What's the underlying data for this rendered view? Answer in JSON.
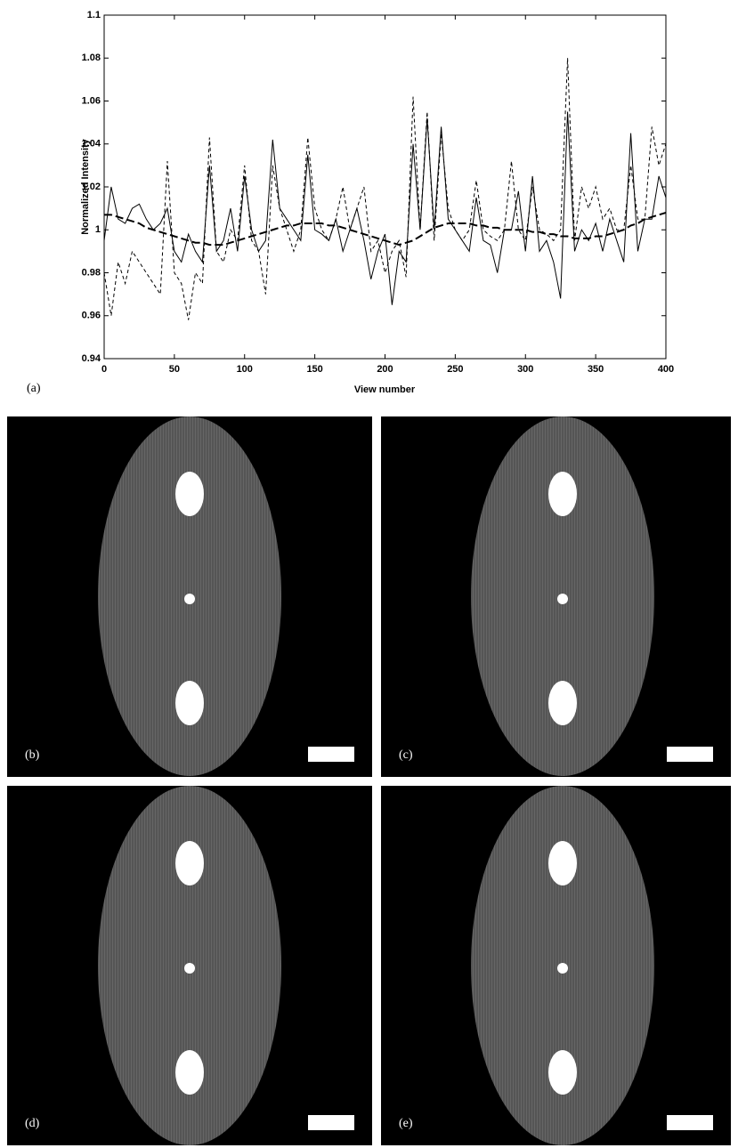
{
  "chart_data": {
    "type": "line",
    "xlabel": "View number",
    "ylabel": "Normalized Intensity",
    "xlim": [
      0,
      400
    ],
    "xticks": [
      0,
      50,
      100,
      150,
      200,
      250,
      300,
      350,
      400
    ],
    "ylim": [
      0.94,
      1.1
    ],
    "yticks": [
      0.94,
      0.96,
      0.98,
      1,
      1.02,
      1.04,
      1.06,
      1.08,
      1.1
    ],
    "x": [
      0,
      5,
      10,
      15,
      20,
      25,
      30,
      35,
      40,
      45,
      50,
      55,
      60,
      65,
      70,
      75,
      80,
      85,
      90,
      95,
      100,
      105,
      110,
      115,
      120,
      125,
      130,
      135,
      140,
      145,
      150,
      155,
      160,
      165,
      170,
      175,
      180,
      185,
      190,
      195,
      200,
      205,
      210,
      215,
      220,
      225,
      230,
      235,
      240,
      245,
      250,
      255,
      260,
      265,
      270,
      275,
      280,
      285,
      290,
      295,
      300,
      305,
      310,
      315,
      320,
      325,
      330,
      335,
      340,
      345,
      350,
      355,
      360,
      365,
      370,
      375,
      380,
      385,
      390,
      395,
      400
    ],
    "series": [
      {
        "color": "#000000",
        "dash": "none",
        "width": 1,
        "values": [
          0.995,
          1.02,
          1.005,
          1.003,
          1.01,
          1.012,
          1.005,
          1.0,
          1.003,
          1.01,
          0.99,
          0.985,
          0.998,
          0.99,
          0.985,
          1.03,
          0.99,
          0.995,
          1.01,
          0.99,
          1.025,
          1.0,
          0.99,
          0.995,
          1.042,
          1.01,
          1.005,
          1.0,
          0.995,
          1.035,
          1.0,
          0.998,
          0.995,
          1.005,
          0.99,
          1.0,
          1.01,
          0.995,
          0.977,
          0.99,
          0.998,
          0.965,
          0.99,
          0.985,
          1.04,
          1.0,
          1.052,
          1.0,
          1.048,
          1.005,
          1.0,
          0.995,
          0.99,
          1.015,
          0.995,
          0.993,
          0.98,
          1.0,
          1.0,
          1.018,
          0.99,
          1.025,
          0.99,
          0.995,
          0.985,
          0.968,
          1.055,
          0.99,
          1.0,
          0.995,
          1.003,
          0.99,
          1.005,
          0.995,
          0.985,
          1.045,
          0.99,
          1.005,
          1.005,
          1.025,
          1.015
        ]
      },
      {
        "color": "#000000",
        "dash": "4,3",
        "width": 1,
        "values": [
          0.98,
          0.96,
          0.985,
          0.975,
          0.99,
          0.985,
          0.98,
          0.975,
          0.97,
          1.032,
          0.98,
          0.975,
          0.958,
          0.98,
          0.975,
          1.043,
          0.99,
          0.985,
          1.0,
          0.995,
          1.03,
          0.995,
          0.99,
          0.97,
          1.03,
          1.01,
          1.0,
          0.99,
          1.0,
          1.043,
          1.01,
          1.0,
          0.995,
          1.005,
          1.02,
          1.0,
          1.01,
          1.02,
          0.99,
          0.995,
          0.98,
          0.99,
          0.995,
          0.978,
          1.062,
          1.0,
          1.055,
          0.995,
          1.045,
          1.01,
          1.0,
          0.995,
          1.0,
          1.023,
          1.0,
          0.997,
          0.995,
          1.0,
          1.032,
          1.0,
          0.995,
          1.02,
          1.0,
          0.998,
          0.995,
          1.0,
          1.08,
          0.995,
          1.02,
          1.01,
          1.02,
          1.005,
          1.01,
          1.0,
          1.0,
          1.03,
          1.005,
          1.005,
          1.048,
          1.03,
          1.04
        ]
      },
      {
        "color": "#000000",
        "dash": "9,4",
        "width": 2,
        "values": [
          1.007,
          1.007,
          1.006,
          1.005,
          1.004,
          1.003,
          1.001,
          1.0,
          0.999,
          0.998,
          0.997,
          0.996,
          0.995,
          0.994,
          0.994,
          0.993,
          0.993,
          0.993,
          0.994,
          0.995,
          0.996,
          0.997,
          0.998,
          0.999,
          1.0,
          1.001,
          1.002,
          1.002,
          1.003,
          1.003,
          1.003,
          1.003,
          1.002,
          1.002,
          1.001,
          1.0,
          0.999,
          0.998,
          0.997,
          0.996,
          0.995,
          0.994,
          0.993,
          0.994,
          0.995,
          0.997,
          0.999,
          1.001,
          1.002,
          1.003,
          1.003,
          1.003,
          1.003,
          1.002,
          1.002,
          1.001,
          1.001,
          1.0,
          1.0,
          1.0,
          1.0,
          0.999,
          0.999,
          0.998,
          0.998,
          0.997,
          0.997,
          0.996,
          0.996,
          0.996,
          0.997,
          0.997,
          0.998,
          0.999,
          1.0,
          1.002,
          1.003,
          1.005,
          1.006,
          1.007,
          1.008
        ]
      }
    ]
  },
  "figure": {
    "chart_label": "(a)",
    "image_labels": [
      "(b)",
      "(c)",
      "(d)",
      "(e)"
    ]
  }
}
